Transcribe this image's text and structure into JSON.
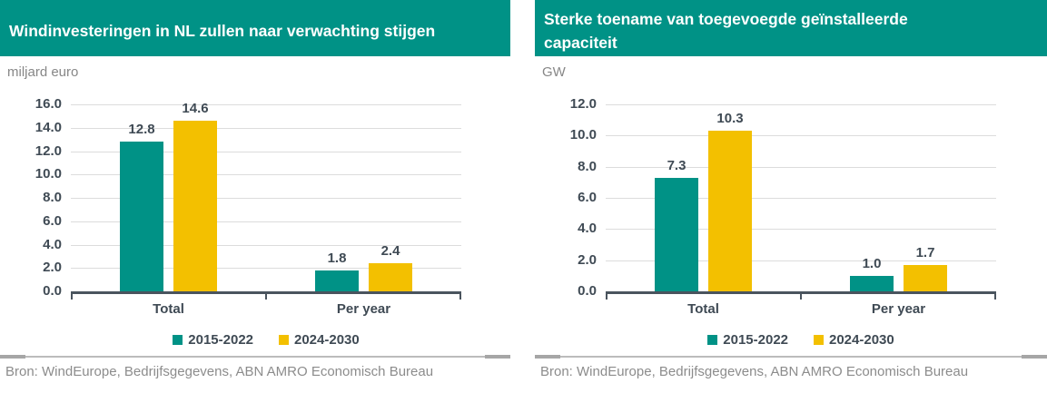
{
  "theme": {
    "header_bg": "#009286",
    "header_text": "#FFFFFF",
    "axis_color": "#4A545E",
    "grid_color": "#DCDCDC",
    "label_color": "#3F4A54",
    "muted_text": "#878787",
    "rule_color": "#BCBCBC"
  },
  "chart_data": [
    {
      "type": "bar",
      "title": "Windinvesteringen in NL zullen naar verwachting stijgen",
      "ylabel": "miljard euro",
      "xlabel": "",
      "categories": [
        "Total",
        "Per year"
      ],
      "series": [
        {
          "name": "2015-2022",
          "color": "#009286",
          "values": [
            12.8,
            1.8
          ]
        },
        {
          "name": "2024-2030",
          "color": "#F3C000",
          "values": [
            14.6,
            2.4
          ]
        }
      ],
      "ylim": [
        0,
        16
      ],
      "ytick_step": 2,
      "grid": true,
      "legend_position": "bottom",
      "source": "Bron: WindEurope, Bedrijfsgegevens, ABN AMRO Economisch Bureau"
    },
    {
      "type": "bar",
      "title": "Sterke toename van toegevoegde geïnstalleerde capaciteit",
      "ylabel": "GW",
      "xlabel": "",
      "categories": [
        "Total",
        "Per year"
      ],
      "series": [
        {
          "name": "2015-2022",
          "color": "#009286",
          "values": [
            7.3,
            1.0
          ]
        },
        {
          "name": "2024-2030",
          "color": "#F3C000",
          "values": [
            10.3,
            1.7
          ]
        }
      ],
      "ylim": [
        0,
        12
      ],
      "ytick_step": 2,
      "grid": true,
      "legend_position": "bottom",
      "source": "Bron: WindEurope, Bedrijfsgegevens, ABN AMRO Economisch Bureau"
    }
  ]
}
